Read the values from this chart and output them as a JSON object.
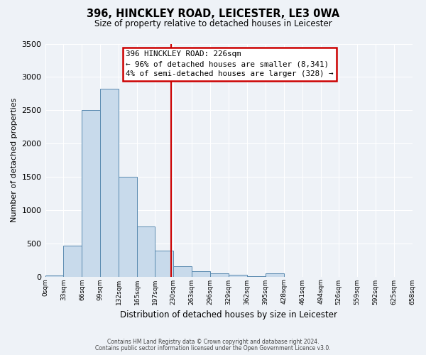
{
  "title": "396, HINCKLEY ROAD, LEICESTER, LE3 0WA",
  "subtitle": "Size of property relative to detached houses in Leicester",
  "xlabel": "Distribution of detached houses by size in Leicester",
  "ylabel": "Number of detached properties",
  "bar_color": "#c8daeb",
  "bar_edge_color": "#5a8ab0",
  "background_color": "#eef2f7",
  "grid_color": "#ffffff",
  "bin_edges": [
    0,
    33,
    66,
    99,
    132,
    165,
    197,
    230,
    263,
    296,
    329,
    362,
    395,
    428,
    461,
    494,
    526,
    559,
    592,
    625,
    658
  ],
  "bar_heights": [
    12,
    460,
    2500,
    2820,
    1500,
    750,
    390,
    150,
    75,
    50,
    25,
    5,
    45,
    0,
    0,
    0,
    0,
    0,
    0,
    0
  ],
  "property_value": 226,
  "annotation_title": "396 HINCKLEY ROAD: 226sqm",
  "annotation_line1": "← 96% of detached houses are smaller (8,341)",
  "annotation_line2": "4% of semi-detached houses are larger (328) →",
  "annotation_box_color": "#ffffff",
  "annotation_box_edge_color": "#cc0000",
  "vline_color": "#cc0000",
  "ylim": [
    0,
    3500
  ],
  "yticks": [
    0,
    500,
    1000,
    1500,
    2000,
    2500,
    3000,
    3500
  ],
  "footer_line1": "Contains HM Land Registry data © Crown copyright and database right 2024.",
  "footer_line2": "Contains public sector information licensed under the Open Government Licence v3.0."
}
